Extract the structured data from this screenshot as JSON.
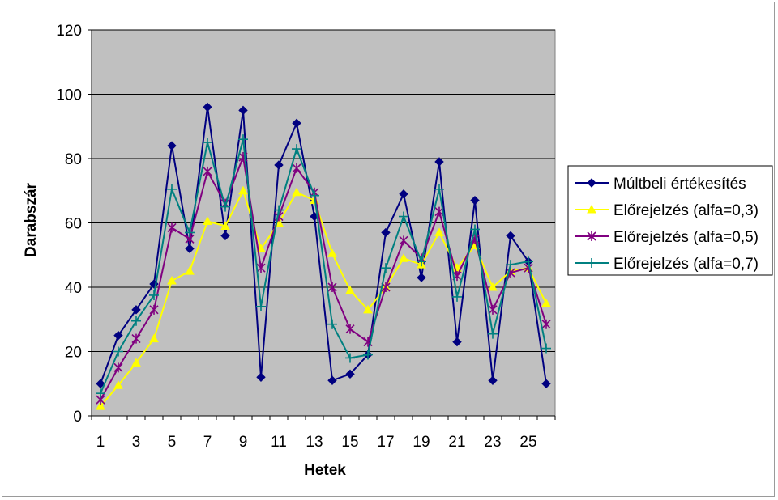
{
  "chart_data": {
    "type": "line",
    "xlabel": "Hetek",
    "ylabel": "Darabszár",
    "ylim": [
      0,
      120
    ],
    "yticks": [
      0,
      20,
      40,
      60,
      80,
      100,
      120
    ],
    "xticks": [
      1,
      3,
      5,
      7,
      9,
      11,
      13,
      15,
      17,
      19,
      21,
      23,
      25
    ],
    "grid": true,
    "plot_background": "#c0c0c0",
    "legend_position": "right",
    "x": [
      1,
      2,
      3,
      4,
      5,
      6,
      7,
      8,
      9,
      10,
      11,
      12,
      13,
      14,
      15,
      16,
      17,
      18,
      19,
      20,
      21,
      22,
      23,
      24,
      25,
      26
    ],
    "series": [
      {
        "name": "Múltbeli értékesítés",
        "color": "#000080",
        "marker": "diamond",
        "values": [
          10,
          25,
          33,
          41,
          84,
          52,
          96,
          56,
          95,
          12,
          78,
          91,
          62,
          11,
          13,
          19,
          57,
          69,
          43,
          79,
          23,
          67,
          11,
          56,
          48,
          10
        ]
      },
      {
        "name": "Előrejelzés (alfa=0,3)",
        "color": "#ffff00",
        "marker": "triangle",
        "values": [
          3,
          9.5,
          16.5,
          24,
          42,
          45,
          60.5,
          59,
          70,
          52,
          60,
          69.5,
          67,
          50.5,
          39,
          33,
          40,
          49,
          47,
          57,
          46,
          53,
          40,
          45,
          46,
          35
        ]
      },
      {
        "name": "Előrejelzés (alfa=0,5)",
        "color": "#800080",
        "marker": "star",
        "values": [
          5,
          15,
          24,
          33,
          58.5,
          55,
          76,
          66,
          80.5,
          46,
          62,
          77,
          69.5,
          40,
          27,
          23,
          40,
          54.5,
          49,
          63.5,
          43.5,
          55,
          33,
          44.5,
          46,
          28.5
        ]
      },
      {
        "name": "Előrejelzés (alfa=0,7)",
        "color": "#008080",
        "marker": "plus",
        "values": [
          7,
          20,
          29.5,
          37.5,
          70.5,
          57,
          85,
          65,
          86,
          34,
          64,
          83,
          68.5,
          28.5,
          18,
          19,
          46,
          62,
          48,
          70.5,
          37,
          58,
          25.5,
          47,
          48,
          21
        ]
      }
    ]
  }
}
